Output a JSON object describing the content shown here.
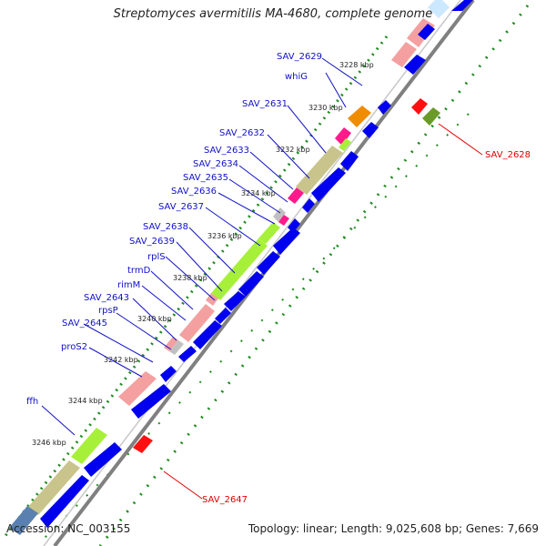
{
  "title": "Streptomyces avermitilis MA-4680, complete genome",
  "footer": {
    "accession": "Accession: NC_003155",
    "summary": "Topology: linear; Length: 9,025,608 bp; Genes: 7,669"
  },
  "colors": {
    "cds_forward": "#0000ee",
    "line": "#808080",
    "dots": "#1e8c1e",
    "label_blue": "#1010c8",
    "label_red": "#e00000",
    "segment_palette": [
      "#f4a0a0",
      "#a7f03a",
      "#c8c48c",
      "#ff1a8c",
      "#f08c00",
      "#c0c0c0",
      "#ff1010",
      "#6a9a28",
      "#cce8ff"
    ]
  },
  "scale": [
    {
      "label": "3228 kbp"
    },
    {
      "label": "3230 kbp"
    },
    {
      "label": "3232 kbp"
    },
    {
      "label": "3234 kbp"
    },
    {
      "label": "3236 kbp"
    },
    {
      "label": "3238 kbp"
    },
    {
      "label": "3240 kbp"
    },
    {
      "label": "3242 kbp"
    },
    {
      "label": "3244 kbp"
    },
    {
      "label": "3246 kbp"
    }
  ],
  "genes": [
    {
      "name": "SAV_2629"
    },
    {
      "name": "whiG"
    },
    {
      "name": "SAV_2631"
    },
    {
      "name": "SAV_2632"
    },
    {
      "name": "SAV_2633"
    },
    {
      "name": "SAV_2634"
    },
    {
      "name": "SAV_2635"
    },
    {
      "name": "SAV_2636"
    },
    {
      "name": "SAV_2637"
    },
    {
      "name": "SAV_2638"
    },
    {
      "name": "SAV_2639"
    },
    {
      "name": "rplS"
    },
    {
      "name": "trmD"
    },
    {
      "name": "rimM"
    },
    {
      "name": "SAV_2643"
    },
    {
      "name": "rpsP"
    },
    {
      "name": "SAV_2645"
    },
    {
      "name": "proS2"
    },
    {
      "name": "ffh"
    },
    {
      "name": "SAV_2628"
    },
    {
      "name": "SAV_2647"
    }
  ]
}
